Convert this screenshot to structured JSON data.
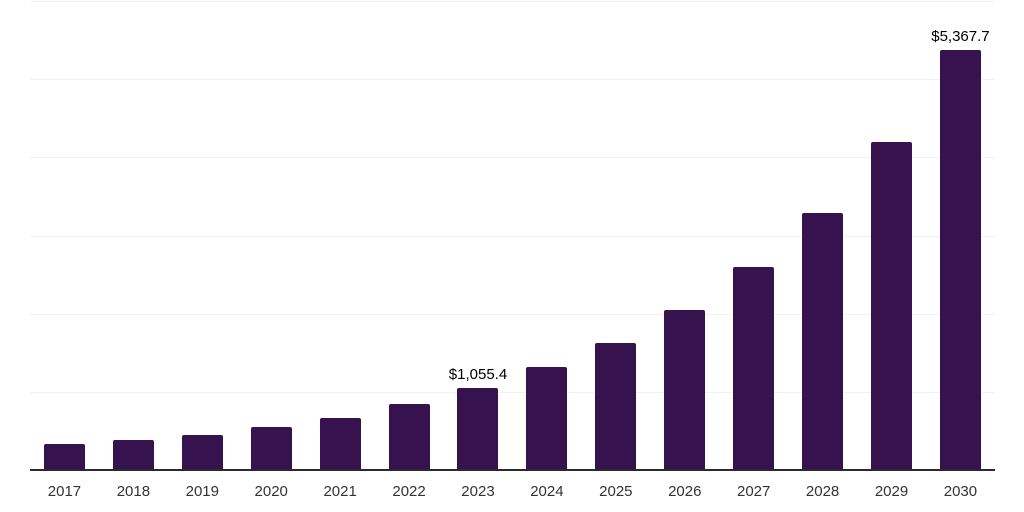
{
  "chart_data": {
    "type": "bar",
    "title": "",
    "xlabel": "",
    "ylabel": "",
    "categories": [
      "2017",
      "2018",
      "2019",
      "2020",
      "2021",
      "2022",
      "2023",
      "2024",
      "2025",
      "2026",
      "2027",
      "2028",
      "2029",
      "2030"
    ],
    "values": [
      330,
      385,
      445,
      550,
      670,
      845,
      1055.4,
      1320,
      1625,
      2050,
      2600,
      3290,
      4190,
      5367.7
    ],
    "data_labels": {
      "2023": "$1,055.4",
      "2030": "$5,367.7"
    },
    "ylim": [
      0,
      6000
    ],
    "gridline_values": [
      1000,
      2000,
      3000,
      4000,
      5000,
      6000
    ],
    "grid": true,
    "legend": false,
    "y_axis_tick_labels_visible": false,
    "colors": {
      "bar": "#36124E",
      "gridline": "#F1F1F1",
      "axis_line": "#2B2B2B",
      "tick_label": "#333333",
      "data_label": "#000000",
      "background": "#FFFFFF"
    }
  }
}
